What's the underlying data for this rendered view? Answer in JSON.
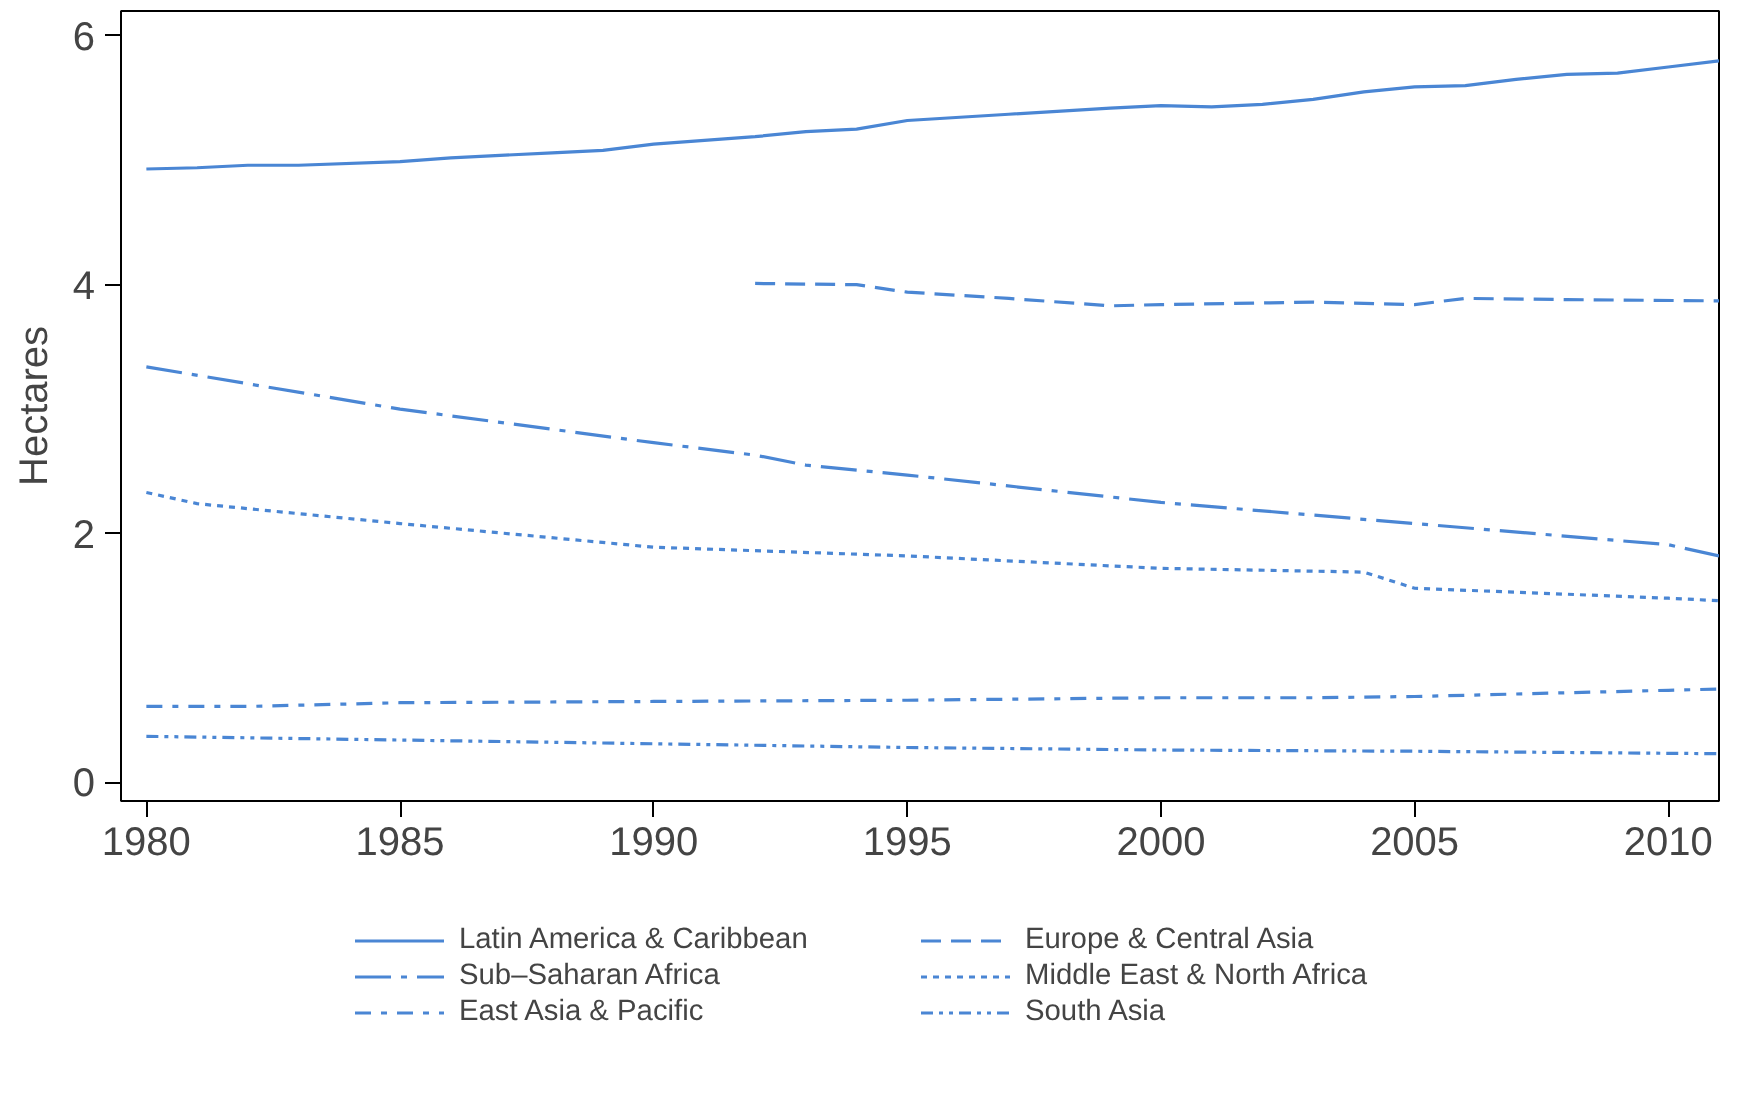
{
  "chart_data": {
    "type": "line",
    "ylabel": "Hectares",
    "xlim": [
      1979.5,
      2011
    ],
    "ylim": [
      -0.15,
      6.2
    ],
    "xticks": [
      1980,
      1985,
      1990,
      1995,
      2000,
      2005,
      2010
    ],
    "yticks": [
      0,
      2,
      4,
      6
    ],
    "grid": false,
    "legend": "bottom",
    "series": [
      {
        "name": "Latin America & Caribbean",
        "color": "#4a86d4",
        "line_style": "solid",
        "x": [
          1980,
          1981,
          1982,
          1983,
          1985,
          1986,
          1988,
          1989,
          1990,
          1992,
          1993,
          1994,
          1995,
          1997,
          1999,
          2000,
          2001,
          2002,
          2003,
          2004,
          2005,
          2006,
          2007,
          2008,
          2009,
          2010,
          2011
        ],
        "values": [
          4.93,
          4.94,
          4.96,
          4.96,
          4.99,
          5.02,
          5.06,
          5.08,
          5.13,
          5.19,
          5.23,
          5.25,
          5.32,
          5.37,
          5.42,
          5.44,
          5.43,
          5.45,
          5.49,
          5.55,
          5.59,
          5.6,
          5.65,
          5.69,
          5.7,
          5.75,
          5.8
        ]
      },
      {
        "name": "Europe & Central Asia",
        "color": "#4a86d4",
        "line_style": "dashed",
        "x": [
          1992,
          1994,
          1995,
          1997,
          1999,
          2000,
          2003,
          2005,
          2006,
          2008,
          2011
        ],
        "values": [
          4.01,
          4.0,
          3.94,
          3.89,
          3.83,
          3.84,
          3.86,
          3.84,
          3.89,
          3.88,
          3.87
        ]
      },
      {
        "name": "Sub–Saharan Africa",
        "color": "#4a86d4",
        "line_style": "dashdot",
        "x": [
          1980,
          1985,
          1990,
          1992,
          1993,
          1995,
          2000,
          2005,
          2010,
          2011
        ],
        "values": [
          3.34,
          3.0,
          2.73,
          2.63,
          2.55,
          2.47,
          2.25,
          2.08,
          1.91,
          1.82
        ]
      },
      {
        "name": "Middle East & North Africa",
        "color": "#4a86d4",
        "line_style": "dotted",
        "x": [
          1980,
          1981,
          1985,
          1990,
          1995,
          2000,
          2004,
          2005,
          2010,
          2011
        ],
        "values": [
          2.33,
          2.24,
          2.08,
          1.89,
          1.82,
          1.72,
          1.69,
          1.56,
          1.48,
          1.46
        ]
      },
      {
        "name": "East Asia & Pacific",
        "color": "#4a86d4",
        "line_style": "dotdash",
        "x": [
          1980,
          1982,
          1985,
          1990,
          1995,
          2000,
          2003,
          2005,
          2010,
          2011
        ],
        "values": [
          0.61,
          0.61,
          0.64,
          0.65,
          0.66,
          0.68,
          0.68,
          0.69,
          0.74,
          0.75
        ]
      },
      {
        "name": "South Asia",
        "color": "#4a86d4",
        "line_style": "dashdotdot",
        "x": [
          1980,
          1985,
          1990,
          1995,
          2000,
          2005,
          2011
        ],
        "values": [
          0.37,
          0.34,
          0.31,
          0.28,
          0.26,
          0.25,
          0.23
        ]
      }
    ]
  }
}
